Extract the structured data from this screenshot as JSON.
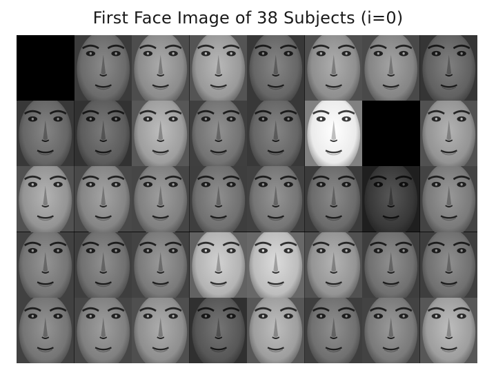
{
  "figure": {
    "title": "First Face Image of 38 Subjects (i=0)"
  },
  "montage": {
    "rows": 5,
    "cols": 8,
    "subject_count": 38,
    "empty_tiles": [
      0,
      14
    ],
    "tiles": [
      {
        "tone": 0,
        "empty": true
      },
      {
        "tone": 0.42
      },
      {
        "tone": 0.55
      },
      {
        "tone": 0.6
      },
      {
        "tone": 0.4
      },
      {
        "tone": 0.56
      },
      {
        "tone": 0.52
      },
      {
        "tone": 0.38
      },
      {
        "tone": 0.4
      },
      {
        "tone": 0.36
      },
      {
        "tone": 0.62
      },
      {
        "tone": 0.45
      },
      {
        "tone": 0.4
      },
      {
        "tone": 0.92
      },
      {
        "tone": 0,
        "empty": true
      },
      {
        "tone": 0.58
      },
      {
        "tone": 0.58
      },
      {
        "tone": 0.52
      },
      {
        "tone": 0.5
      },
      {
        "tone": 0.44
      },
      {
        "tone": 0.46
      },
      {
        "tone": 0.42
      },
      {
        "tone": 0.22
      },
      {
        "tone": 0.48
      },
      {
        "tone": 0.46
      },
      {
        "tone": 0.44
      },
      {
        "tone": 0.48
      },
      {
        "tone": 0.7
      },
      {
        "tone": 0.74
      },
      {
        "tone": 0.58
      },
      {
        "tone": 0.44
      },
      {
        "tone": 0.44
      },
      {
        "tone": 0.46
      },
      {
        "tone": 0.5
      },
      {
        "tone": 0.56
      },
      {
        "tone": 0.34
      },
      {
        "tone": 0.62
      },
      {
        "tone": 0.44
      },
      {
        "tone": 0.48
      },
      {
        "tone": 0.62
      }
    ]
  }
}
